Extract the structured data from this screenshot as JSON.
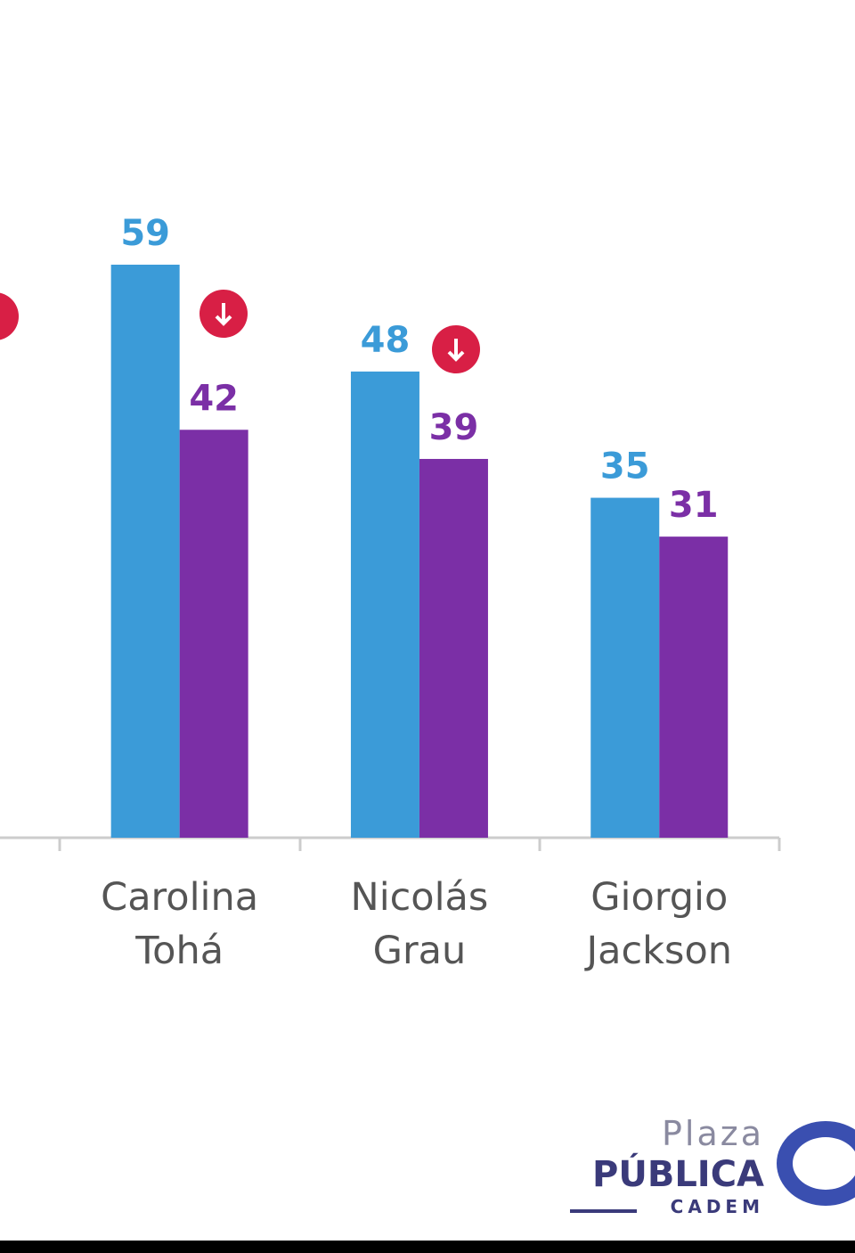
{
  "chart_data": {
    "type": "bar",
    "categories": [
      "Carolina Tohá",
      "Nicolás Grau",
      "Giorgio Jackson"
    ],
    "series": [
      {
        "color": "#3b9bd8",
        "values": [
          59,
          48,
          35
        ]
      },
      {
        "color": "#7b2fa6",
        "values": [
          42,
          39,
          31
        ]
      }
    ],
    "ylim": [
      0,
      59
    ]
  },
  "logo": {
    "line1": "Plaza",
    "line2": "PÚBLICA",
    "line3": "CADEM"
  }
}
